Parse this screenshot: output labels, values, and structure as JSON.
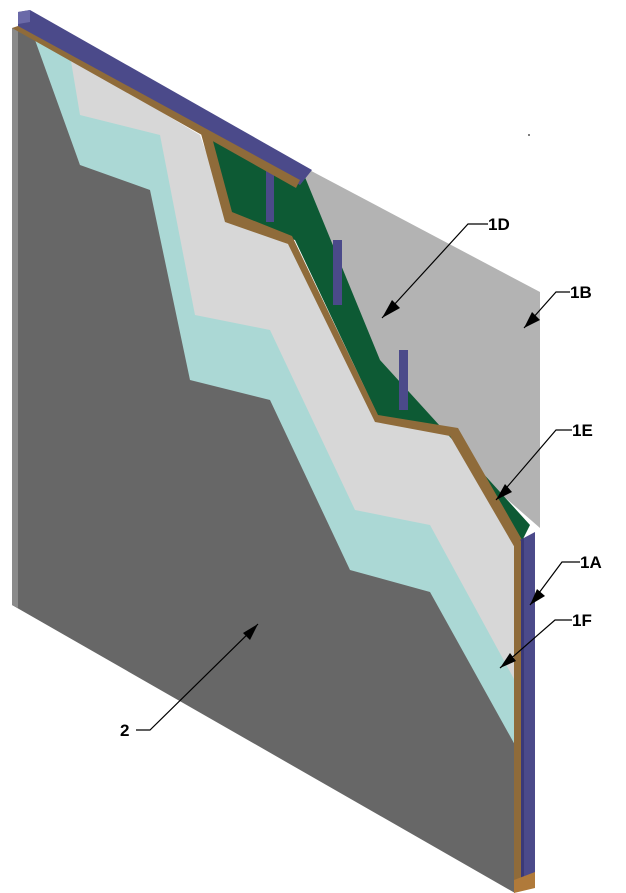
{
  "callouts": {
    "c1A": "1A",
    "c1B": "1B",
    "c1D": "1D",
    "c1E": "1E",
    "c1F": "1F",
    "c2": "2"
  },
  "colors": {
    "board_face": "#676767",
    "board_edge": "#a7a7a7",
    "insulation": "#abd8d5",
    "base_panel": "#d7d7d7",
    "back_panel": "#b3b3b3",
    "membrane": "#0d5a34",
    "studs": "#4b4a8a",
    "wood": "#8f6b3a"
  }
}
